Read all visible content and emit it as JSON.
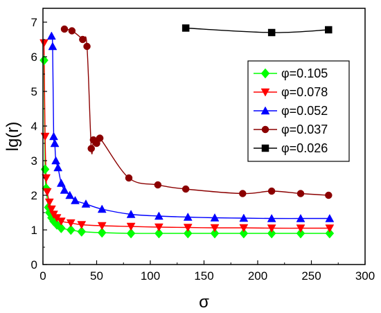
{
  "chart_data": {
    "type": "line",
    "title": "",
    "xlabel": "σ",
    "ylabel": "lg(r)",
    "xlim": [
      0,
      300
    ],
    "ylim": [
      0,
      7.4
    ],
    "xticks": [
      0,
      50,
      100,
      150,
      200,
      250,
      300
    ],
    "yticks": [
      0,
      1,
      2,
      3,
      4,
      5,
      6,
      7
    ],
    "grid": false,
    "legend_position": "right",
    "series": [
      {
        "name": "φ=0.105",
        "color": "#00ff00",
        "marker": "diamond",
        "line": "smooth",
        "x": [
          1,
          2,
          3,
          5,
          6,
          8,
          10,
          13,
          17,
          26,
          36,
          55,
          82,
          108,
          135,
          160,
          187,
          213,
          240,
          267
        ],
        "y": [
          5.9,
          2.75,
          2.2,
          1.65,
          1.5,
          1.35,
          1.25,
          1.15,
          1.05,
          1.0,
          0.95,
          0.92,
          0.9,
          0.9,
          0.9,
          0.9,
          0.9,
          0.9,
          0.9,
          0.9
        ]
      },
      {
        "name": "φ=0.078",
        "color": "#ff0000",
        "marker": "triangle-down",
        "line": "smooth",
        "x": [
          1,
          2,
          3,
          4,
          6,
          8,
          10,
          13,
          17,
          26,
          36,
          55,
          82,
          108,
          135,
          160,
          187,
          213,
          240,
          267
        ],
        "y": [
          6.4,
          3.7,
          2.5,
          2.1,
          1.8,
          1.6,
          1.45,
          1.35,
          1.25,
          1.2,
          1.15,
          1.12,
          1.1,
          1.08,
          1.07,
          1.06,
          1.06,
          1.05,
          1.05,
          1.05
        ]
      },
      {
        "name": "φ=0.052",
        "color": "#0000ff",
        "marker": "triangle-up",
        "line": "smooth",
        "x": [
          8,
          9,
          10,
          11,
          12,
          14,
          17,
          20,
          25,
          30,
          40,
          55,
          82,
          108,
          135,
          160,
          187,
          213,
          240,
          267
        ],
        "y": [
          6.6,
          6.3,
          3.7,
          3.5,
          3.0,
          2.8,
          2.35,
          2.15,
          2.0,
          1.85,
          1.75,
          1.6,
          1.45,
          1.4,
          1.37,
          1.35,
          1.34,
          1.33,
          1.33,
          1.33
        ]
      },
      {
        "name": "φ=0.037",
        "color": "#8b0000",
        "marker": "circle",
        "line": "smooth",
        "x": [
          20,
          27,
          37,
          41,
          45,
          47,
          50,
          53,
          80,
          107,
          133,
          186,
          213,
          240,
          266
        ],
        "y": [
          6.8,
          6.75,
          6.5,
          6.3,
          3.35,
          3.6,
          3.5,
          3.65,
          2.5,
          2.3,
          2.18,
          2.05,
          2.12,
          2.05,
          2.0
        ]
      },
      {
        "name": "φ=0.026",
        "color": "#000000",
        "marker": "square",
        "line": "smooth",
        "x": [
          133,
          213,
          266
        ],
        "y": [
          6.83,
          6.7,
          6.78
        ]
      }
    ]
  }
}
